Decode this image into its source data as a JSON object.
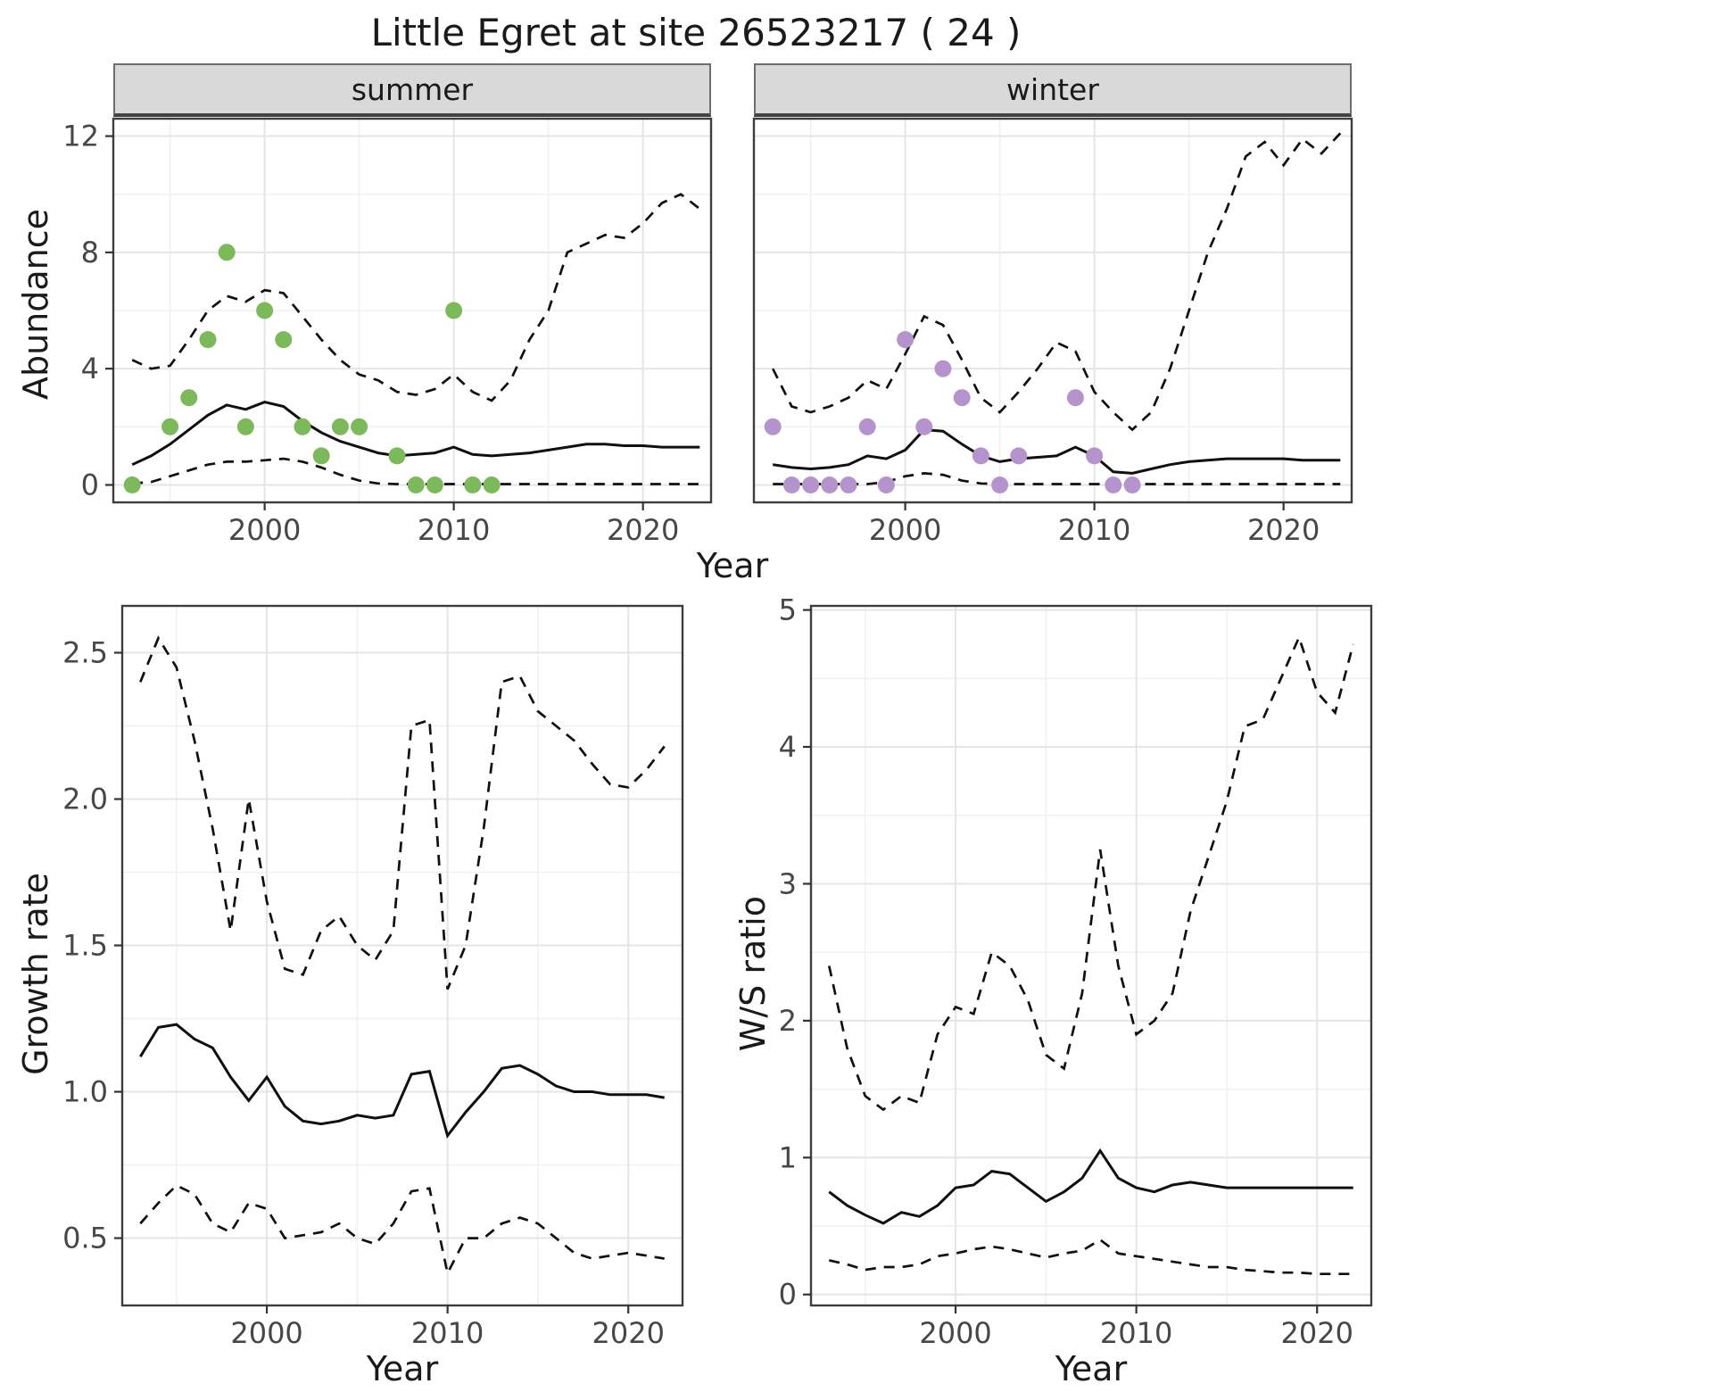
{
  "title": "Little Egret at site 26523217 ( 24 )",
  "colors": {
    "summer_points": "#7CB95A",
    "winter_points": "#B594CE",
    "line": "#101010",
    "strip_background": "#d9d9d9",
    "gridline": "#e5e5e5"
  },
  "chart_data": [
    {
      "id": "summer",
      "type": "line",
      "facet_label": "summer",
      "ylabel": "Abundance",
      "xlabel": "Year",
      "xlim": [
        1992,
        2023.6
      ],
      "ylim": [
        -0.6,
        12.6
      ],
      "xtick_values": [
        2000,
        2010,
        2020
      ],
      "xtick_labels": [
        "2000",
        "2010",
        "2020"
      ],
      "xticks_minor": [
        1995,
        2005,
        2015
      ],
      "ytick_values": [
        0,
        4,
        8,
        12
      ],
      "ytick_labels": [
        "0",
        "4",
        "8",
        "12"
      ],
      "yticks_minor": [
        2,
        6,
        10
      ],
      "point_color": "#7CB95A",
      "years": [
        1993,
        1994,
        1995,
        1996,
        1997,
        1998,
        1999,
        2000,
        2001,
        2002,
        2003,
        2004,
        2005,
        2006,
        2007,
        2008,
        2009,
        2010,
        2011,
        2012,
        2013,
        2014,
        2015,
        2016,
        2017,
        2018,
        2019,
        2020,
        2021,
        2022,
        2023
      ],
      "fit": [
        0.7,
        1.0,
        1.4,
        1.9,
        2.4,
        2.75,
        2.6,
        2.85,
        2.7,
        2.2,
        1.8,
        1.5,
        1.3,
        1.1,
        1.0,
        1.05,
        1.1,
        1.3,
        1.05,
        1.0,
        1.05,
        1.1,
        1.2,
        1.3,
        1.4,
        1.4,
        1.35,
        1.35,
        1.3,
        1.3,
        1.3
      ],
      "upper": [
        4.3,
        4.0,
        4.1,
        5.0,
        6.0,
        6.5,
        6.3,
        6.7,
        6.6,
        5.8,
        5.0,
        4.3,
        3.8,
        3.6,
        3.2,
        3.1,
        3.3,
        3.8,
        3.2,
        2.9,
        3.6,
        5.0,
        6.0,
        8.0,
        8.3,
        8.6,
        8.5,
        9.0,
        9.7,
        10.0,
        9.5
      ],
      "lower": [
        0.05,
        0.1,
        0.3,
        0.5,
        0.7,
        0.8,
        0.8,
        0.85,
        0.9,
        0.8,
        0.6,
        0.35,
        0.15,
        0.05,
        0.03,
        0.03,
        0.03,
        0.03,
        0.03,
        0.03,
        0.03,
        0.03,
        0.03,
        0.03,
        0.03,
        0.03,
        0.03,
        0.03,
        0.03,
        0.03,
        0.03
      ],
      "points": {
        "x": [
          1993,
          1995,
          1996,
          1997,
          1998,
          1999,
          2000,
          2001,
          2002,
          2003,
          2004,
          2005,
          2007,
          2008,
          2009,
          2010,
          2011,
          2012
        ],
        "y": [
          0,
          2,
          3,
          5,
          8,
          2,
          6,
          5,
          2,
          1,
          2,
          2,
          1,
          0,
          0,
          6,
          0,
          0
        ]
      }
    },
    {
      "id": "winter",
      "type": "line",
      "facet_label": "winter",
      "xlim": [
        1992,
        2023.6
      ],
      "ylim": [
        -0.6,
        12.6
      ],
      "xtick_values": [
        2000,
        2010,
        2020
      ],
      "xtick_labels": [
        "2000",
        "2010",
        "2020"
      ],
      "xticks_minor": [
        1995,
        2005,
        2015
      ],
      "ytick_values": [
        0,
        4,
        8,
        12
      ],
      "ytick_labels": [
        "0",
        "4",
        "8",
        "12"
      ],
      "yticks_minor": [
        2,
        6,
        10
      ],
      "point_color": "#B594CE",
      "years": [
        1993,
        1994,
        1995,
        1996,
        1997,
        1998,
        1999,
        2000,
        2001,
        2002,
        2003,
        2004,
        2005,
        2006,
        2007,
        2008,
        2009,
        2010,
        2011,
        2012,
        2013,
        2014,
        2015,
        2016,
        2017,
        2018,
        2019,
        2020,
        2021,
        2022,
        2023
      ],
      "fit": [
        0.7,
        0.6,
        0.55,
        0.6,
        0.7,
        1.0,
        0.9,
        1.2,
        1.9,
        1.85,
        1.4,
        1.0,
        0.8,
        0.9,
        0.95,
        1.0,
        1.3,
        1.0,
        0.45,
        0.4,
        0.55,
        0.7,
        0.8,
        0.85,
        0.9,
        0.9,
        0.9,
        0.9,
        0.85,
        0.85,
        0.85
      ],
      "upper": [
        4.0,
        2.7,
        2.5,
        2.7,
        3.0,
        3.6,
        3.3,
        4.5,
        5.8,
        5.5,
        4.3,
        3.0,
        2.5,
        3.2,
        4.0,
        4.9,
        4.6,
        3.2,
        2.5,
        1.9,
        2.5,
        4.0,
        6.0,
        8.0,
        9.5,
        11.3,
        11.8,
        11.0,
        11.9,
        11.4,
        12.1
      ],
      "lower": [
        0.03,
        0.03,
        0.03,
        0.03,
        0.03,
        0.03,
        0.1,
        0.3,
        0.4,
        0.35,
        0.15,
        0.05,
        0.03,
        0.03,
        0.03,
        0.03,
        0.03,
        0.03,
        0.03,
        0.03,
        0.03,
        0.03,
        0.03,
        0.03,
        0.03,
        0.03,
        0.03,
        0.03,
        0.03,
        0.03,
        0.03
      ],
      "points": {
        "x": [
          1993,
          1994,
          1995,
          1996,
          1997,
          1998,
          1999,
          2000,
          2001,
          2002,
          2003,
          2004,
          2005,
          2006,
          2009,
          2010,
          2011,
          2012
        ],
        "y": [
          2,
          0,
          0,
          0,
          0,
          2,
          0,
          5,
          2,
          4,
          3,
          1,
          0,
          1,
          3,
          1,
          0,
          0
        ]
      }
    },
    {
      "id": "growth",
      "type": "line",
      "ylabel": "Growth rate",
      "xlabel": "Year",
      "xlim": [
        1992,
        2023
      ],
      "ylim": [
        0.27,
        2.66
      ],
      "xtick_values": [
        2000,
        2010,
        2020
      ],
      "xtick_labels": [
        "2000",
        "2010",
        "2020"
      ],
      "xticks_minor": [
        1995,
        2005,
        2015
      ],
      "ytick_values": [
        0.5,
        1.0,
        1.5,
        2.0,
        2.5
      ],
      "ytick_labels": [
        "0.5",
        "1.0",
        "1.5",
        "2.0",
        "2.5"
      ],
      "yticks_minor": [
        0.75,
        1.25,
        1.75,
        2.25
      ],
      "years": [
        1993,
        1994,
        1995,
        1996,
        1997,
        1998,
        1999,
        2000,
        2001,
        2002,
        2003,
        2004,
        2005,
        2006,
        2007,
        2008,
        2009,
        2010,
        2011,
        2012,
        2013,
        2014,
        2015,
        2016,
        2017,
        2018,
        2019,
        2020,
        2021,
        2022
      ],
      "fit": [
        1.12,
        1.22,
        1.23,
        1.18,
        1.15,
        1.05,
        0.97,
        1.05,
        0.95,
        0.9,
        0.89,
        0.9,
        0.92,
        0.91,
        0.92,
        1.06,
        1.07,
        0.85,
        0.93,
        1.0,
        1.08,
        1.09,
        1.06,
        1.02,
        1.0,
        1.0,
        0.99,
        0.99,
        0.99,
        0.98
      ],
      "upper": [
        2.4,
        2.55,
        2.45,
        2.2,
        1.9,
        1.55,
        2.0,
        1.65,
        1.42,
        1.4,
        1.55,
        1.6,
        1.5,
        1.45,
        1.55,
        2.25,
        2.27,
        1.35,
        1.5,
        1.9,
        2.4,
        2.42,
        2.3,
        2.25,
        2.2,
        2.12,
        2.05,
        2.04,
        2.1,
        2.18
      ],
      "lower": [
        0.55,
        0.62,
        0.68,
        0.65,
        0.55,
        0.52,
        0.62,
        0.6,
        0.5,
        0.51,
        0.52,
        0.55,
        0.5,
        0.48,
        0.55,
        0.66,
        0.67,
        0.38,
        0.5,
        0.5,
        0.55,
        0.57,
        0.55,
        0.5,
        0.45,
        0.43,
        0.44,
        0.45,
        0.44,
        0.43
      ]
    },
    {
      "id": "ws",
      "type": "line",
      "ylabel": "W/S ratio",
      "xlabel": "Year",
      "xlim": [
        1992,
        2023
      ],
      "ylim": [
        -0.08,
        5.03
      ],
      "xtick_values": [
        2000,
        2010,
        2020
      ],
      "xtick_labels": [
        "2000",
        "2010",
        "2020"
      ],
      "xticks_minor": [
        1995,
        2005,
        2015
      ],
      "ytick_values": [
        0,
        1,
        2,
        3,
        4,
        5
      ],
      "ytick_labels": [
        "0",
        "1",
        "2",
        "3",
        "4",
        "5"
      ],
      "yticks_minor": [
        0.5,
        1.5,
        2.5,
        3.5,
        4.5
      ],
      "years": [
        1993,
        1994,
        1995,
        1996,
        1997,
        1998,
        1999,
        2000,
        2001,
        2002,
        2003,
        2004,
        2005,
        2006,
        2007,
        2008,
        2009,
        2010,
        2011,
        2012,
        2013,
        2014,
        2015,
        2016,
        2017,
        2018,
        2019,
        2020,
        2021,
        2022
      ],
      "fit": [
        0.75,
        0.65,
        0.58,
        0.52,
        0.6,
        0.57,
        0.65,
        0.78,
        0.8,
        0.9,
        0.88,
        0.78,
        0.68,
        0.75,
        0.85,
        1.05,
        0.85,
        0.78,
        0.75,
        0.8,
        0.82,
        0.8,
        0.78,
        0.78,
        0.78,
        0.78,
        0.78,
        0.78,
        0.78,
        0.78
      ],
      "upper": [
        2.4,
        1.8,
        1.45,
        1.35,
        1.45,
        1.4,
        1.9,
        2.1,
        2.05,
        2.5,
        2.4,
        2.15,
        1.75,
        1.65,
        2.2,
        3.25,
        2.4,
        1.9,
        2.0,
        2.2,
        2.8,
        3.2,
        3.6,
        4.15,
        4.2,
        4.5,
        4.8,
        4.4,
        4.25,
        4.75
      ],
      "lower": [
        0.25,
        0.22,
        0.18,
        0.2,
        0.2,
        0.22,
        0.28,
        0.3,
        0.33,
        0.35,
        0.33,
        0.3,
        0.27,
        0.3,
        0.32,
        0.4,
        0.3,
        0.28,
        0.26,
        0.24,
        0.22,
        0.2,
        0.2,
        0.18,
        0.17,
        0.16,
        0.16,
        0.15,
        0.15,
        0.15
      ]
    }
  ]
}
